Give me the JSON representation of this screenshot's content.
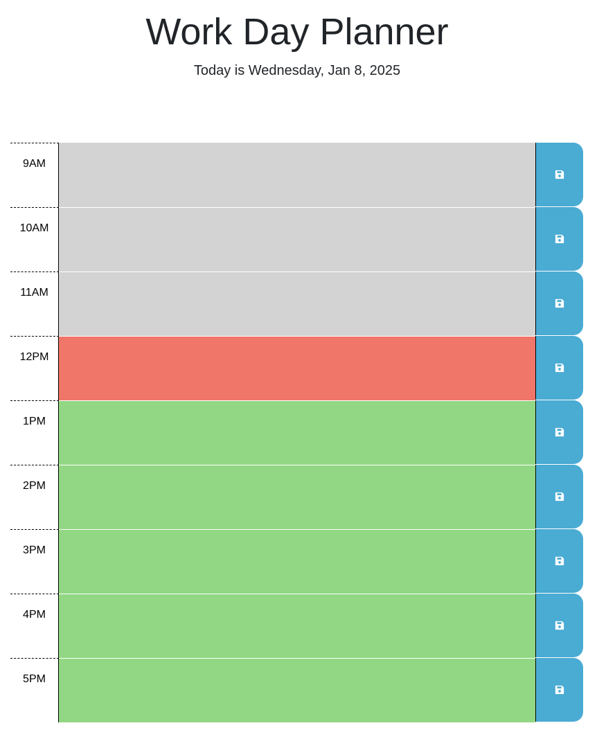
{
  "header": {
    "title": "Work Day Planner",
    "date_text": "Today is Wednesday, Jan 8, 2025"
  },
  "colors": {
    "past": "#d3d3d3",
    "present": "#ef7668",
    "future": "#92d783",
    "save_button": "#4aabd3"
  },
  "time_blocks": [
    {
      "hour": "9AM",
      "state": "past",
      "text": ""
    },
    {
      "hour": "10AM",
      "state": "past",
      "text": ""
    },
    {
      "hour": "11AM",
      "state": "past",
      "text": ""
    },
    {
      "hour": "12PM",
      "state": "present",
      "text": ""
    },
    {
      "hour": "1PM",
      "state": "future",
      "text": ""
    },
    {
      "hour": "2PM",
      "state": "future",
      "text": ""
    },
    {
      "hour": "3PM",
      "state": "future",
      "text": ""
    },
    {
      "hour": "4PM",
      "state": "future",
      "text": ""
    },
    {
      "hour": "5PM",
      "state": "future",
      "text": ""
    }
  ],
  "save_icon": "floppy-disk-icon"
}
